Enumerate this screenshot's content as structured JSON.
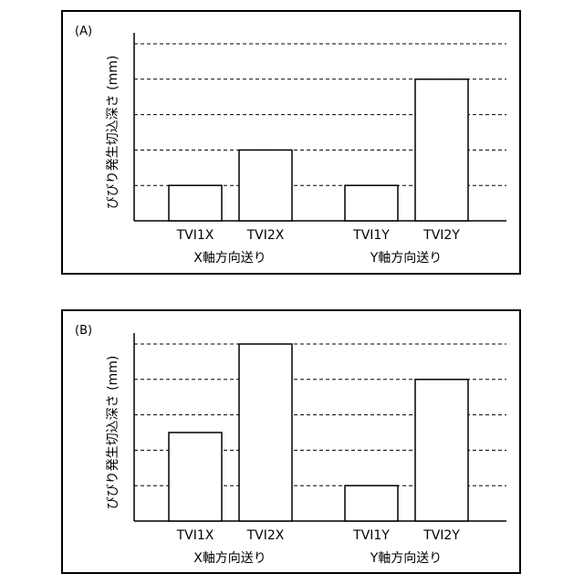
{
  "chart_data": [
    {
      "type": "bar",
      "panel_label": "(A)",
      "ylabel": "びびり発生切込深さ (mm)",
      "ylim": [
        0,
        5
      ],
      "grid": true,
      "categories": [
        "TVI1X",
        "TVI2X",
        "TVI1Y",
        "TVI2Y"
      ],
      "groups": [
        "X軸方向送り",
        "Y軸方向送り"
      ],
      "values": [
        1,
        2,
        1,
        4
      ]
    },
    {
      "type": "bar",
      "panel_label": "(B)",
      "ylabel": "びびり発生切込深さ (mm)",
      "ylim": [
        0,
        5
      ],
      "grid": true,
      "categories": [
        "TVI1X",
        "TVI2X",
        "TVI1Y",
        "TVI2Y"
      ],
      "groups": [
        "X軸方向送り",
        "Y軸方向送り"
      ],
      "values": [
        2.5,
        5,
        1,
        4
      ]
    }
  ]
}
